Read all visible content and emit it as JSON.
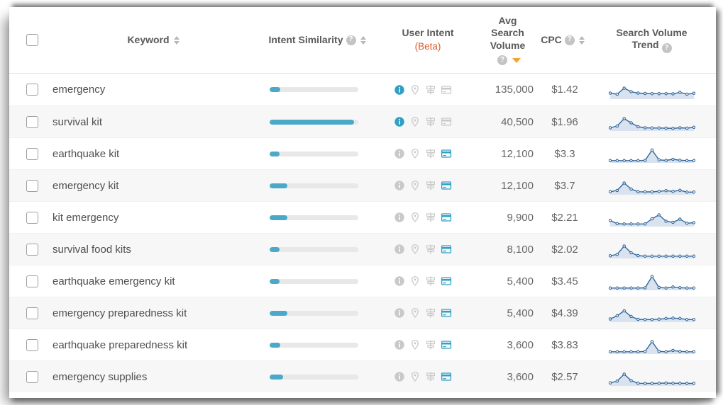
{
  "glyphs": {
    "help": "?"
  },
  "colors": {
    "bar_blue": "#4aa9c9",
    "spark_line": "#33689c",
    "spark_fill": "#d9e3ef",
    "beta_orange": "#dd5a2b",
    "sort_active_orange": "#f0a52f",
    "intent_active_blue": "#2f9fc4",
    "intent_inactive_gray": "#c9c9c9"
  },
  "header": {
    "keyword": "Keyword",
    "intent_similarity": "Intent Similarity",
    "user_intent": "User Intent",
    "user_intent_beta": "(Beta)",
    "avg_search_volume": "Avg Search Volume",
    "cpc": "CPC",
    "search_volume_trend": "Search Volume Trend",
    "sorted_column": "avg_search_volume",
    "sorted_direction": "desc"
  },
  "intent_icon_names": [
    "info-icon",
    "location-pin-icon",
    "signpost-icon",
    "credit-card-icon"
  ],
  "table": {
    "rows": [
      {
        "checked": false,
        "keyword": "emergency",
        "similarity_pct": 12,
        "active_intent": "info",
        "volume": "135,000",
        "cpc": "$1.42",
        "trend": [
          30,
          24,
          58,
          38,
          30,
          28,
          27,
          27,
          27,
          26,
          34,
          24,
          29
        ]
      },
      {
        "checked": false,
        "keyword": "survival kit",
        "similarity_pct": 95,
        "active_intent": "info",
        "volume": "40,500",
        "cpc": "$1.96",
        "trend": [
          14,
          24,
          66,
          42,
          20,
          14,
          13,
          13,
          12,
          11,
          14,
          12,
          17
        ]
      },
      {
        "checked": false,
        "keyword": "earthquake kit",
        "similarity_pct": 11,
        "active_intent": "transactional",
        "volume": "12,100",
        "cpc": "$3.3",
        "trend": [
          9,
          9,
          9,
          9,
          9,
          10,
          68,
          13,
          10,
          16,
          11,
          9,
          9
        ]
      },
      {
        "checked": false,
        "keyword": "emergency kit",
        "similarity_pct": 20,
        "active_intent": "transactional",
        "volume": "12,100",
        "cpc": "$3.7",
        "trend": [
          13,
          20,
          62,
          28,
          13,
          12,
          12,
          15,
          19,
          15,
          21,
          11,
          11
        ]
      },
      {
        "checked": false,
        "keyword": "kit emergency",
        "similarity_pct": 20,
        "active_intent": "transactional",
        "volume": "9,900",
        "cpc": "$2.21",
        "trend": [
          30,
          13,
          11,
          11,
          11,
          11,
          40,
          62,
          26,
          20,
          38,
          15,
          18
        ]
      },
      {
        "checked": false,
        "keyword": "survival food kits",
        "similarity_pct": 11,
        "active_intent": "transactional",
        "volume": "8,100",
        "cpc": "$2.02",
        "trend": [
          11,
          19,
          66,
          28,
          12,
          9,
          9,
          9,
          9,
          9,
          9,
          9,
          9
        ]
      },
      {
        "checked": false,
        "keyword": "earthquake emergency kit",
        "similarity_pct": 11,
        "active_intent": "transactional",
        "volume": "5,400",
        "cpc": "$3.45",
        "trend": [
          9,
          9,
          9,
          9,
          9,
          10,
          74,
          12,
          9,
          15,
          11,
          9,
          9
        ]
      },
      {
        "checked": false,
        "keyword": "emergency preparedness kit",
        "similarity_pct": 20,
        "active_intent": "transactional",
        "volume": "5,400",
        "cpc": "$4.39",
        "trend": [
          14,
          32,
          60,
          28,
          12,
          11,
          11,
          13,
          17,
          19,
          17,
          11,
          11
        ]
      },
      {
        "checked": false,
        "keyword": "earthquake preparedness kit",
        "similarity_pct": 12,
        "active_intent": "transactional",
        "volume": "3,600",
        "cpc": "$3.83",
        "trend": [
          9,
          9,
          9,
          9,
          9,
          11,
          66,
          11,
          9,
          16,
          11,
          9,
          9
        ]
      },
      {
        "checked": false,
        "keyword": "emergency supplies",
        "similarity_pct": 15,
        "active_intent": "transactional",
        "volume": "3,600",
        "cpc": "$2.57",
        "trend": [
          13,
          23,
          62,
          26,
          11,
          10,
          10,
          11,
          12,
          11,
          11,
          10,
          10
        ]
      }
    ]
  }
}
